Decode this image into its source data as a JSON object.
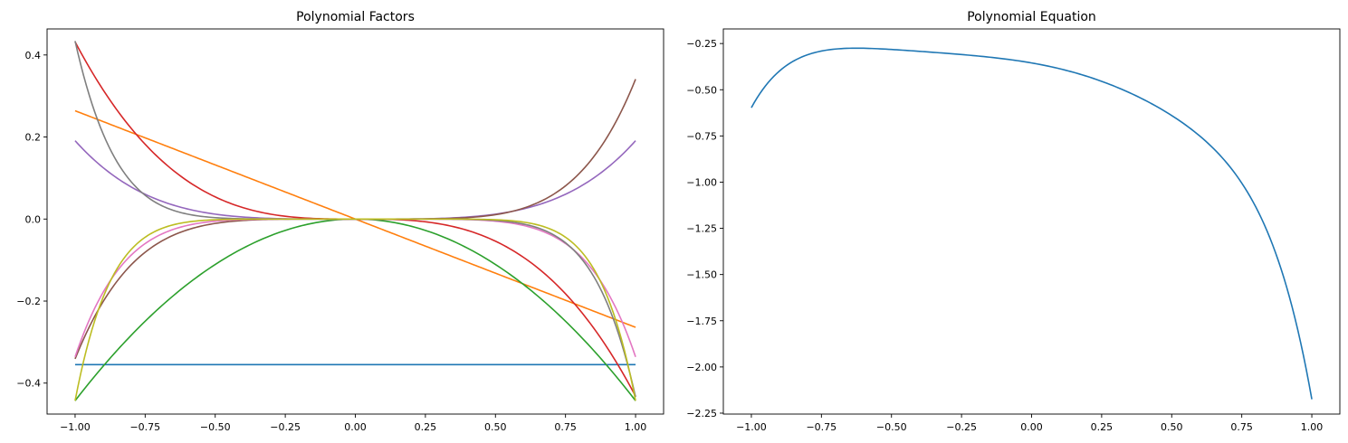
{
  "chart_data": [
    {
      "type": "line",
      "title": "Polynomial Factors",
      "xlabel": "",
      "ylabel": "",
      "xlim": [
        -1.1,
        1.1
      ],
      "ylim": [
        -0.4755,
        0.4635
      ],
      "xticks": [
        -1.0,
        -0.75,
        -0.5,
        -0.25,
        0.0,
        0.25,
        0.5,
        0.75,
        1.0
      ],
      "xtick_labels": [
        "−1.00",
        "−0.75",
        "−0.50",
        "−0.25",
        "0.00",
        "0.25",
        "0.50",
        "0.75",
        "1.00"
      ],
      "yticks": [
        -0.4,
        -0.2,
        0.0,
        0.2,
        0.4
      ],
      "ytick_labels": [
        "−0.4",
        "−0.2",
        "0.0",
        "0.2",
        "0.4"
      ],
      "grid": false,
      "legend": false,
      "x_range": [
        -1.0,
        1.0
      ],
      "series": [
        {
          "coef": -0.355,
          "power": 0,
          "color": "#1f77b4"
        },
        {
          "coef": -0.264,
          "power": 1,
          "color": "#ff7f0e"
        },
        {
          "coef": -0.443,
          "power": 2,
          "color": "#2ca02c"
        },
        {
          "coef": -0.432,
          "power": 3,
          "color": "#d62728"
        },
        {
          "coef": 0.191,
          "power": 4,
          "color": "#9467bd"
        },
        {
          "coef": 0.341,
          "power": 5,
          "color": "#8c564b"
        },
        {
          "coef": -0.336,
          "power": 6,
          "color": "#e377c2"
        },
        {
          "coef": -0.434,
          "power": 7,
          "color": "#7f7f7f"
        },
        {
          "coef": -0.443,
          "power": 8,
          "color": "#bcbd22"
        }
      ]
    },
    {
      "type": "line",
      "title": "Polynomial Equation",
      "xlabel": "",
      "ylabel": "",
      "xlim": [
        -1.1,
        1.1
      ],
      "ylim": [
        -2.255,
        -0.171
      ],
      "xticks": [
        -1.0,
        -0.75,
        -0.5,
        -0.25,
        0.0,
        0.25,
        0.5,
        0.75,
        1.0
      ],
      "xtick_labels": [
        "−1.00",
        "−0.75",
        "−0.50",
        "−0.25",
        "0.00",
        "0.25",
        "0.50",
        "0.75",
        "1.00"
      ],
      "yticks": [
        -0.25,
        -0.5,
        -0.75,
        -1.0,
        -1.25,
        -1.5,
        -1.75,
        -2.0,
        -2.25
      ],
      "ytick_labels": [
        "−0.25",
        "−0.50",
        "−0.75",
        "−1.00",
        "−1.25",
        "−1.50",
        "−1.75",
        "−2.00",
        "−2.25"
      ],
      "grid": false,
      "legend": false,
      "x_range": [
        -1.0,
        1.0
      ],
      "series": [
        {
          "sum_of_factors": true,
          "color": "#1f77b4"
        }
      ]
    }
  ]
}
